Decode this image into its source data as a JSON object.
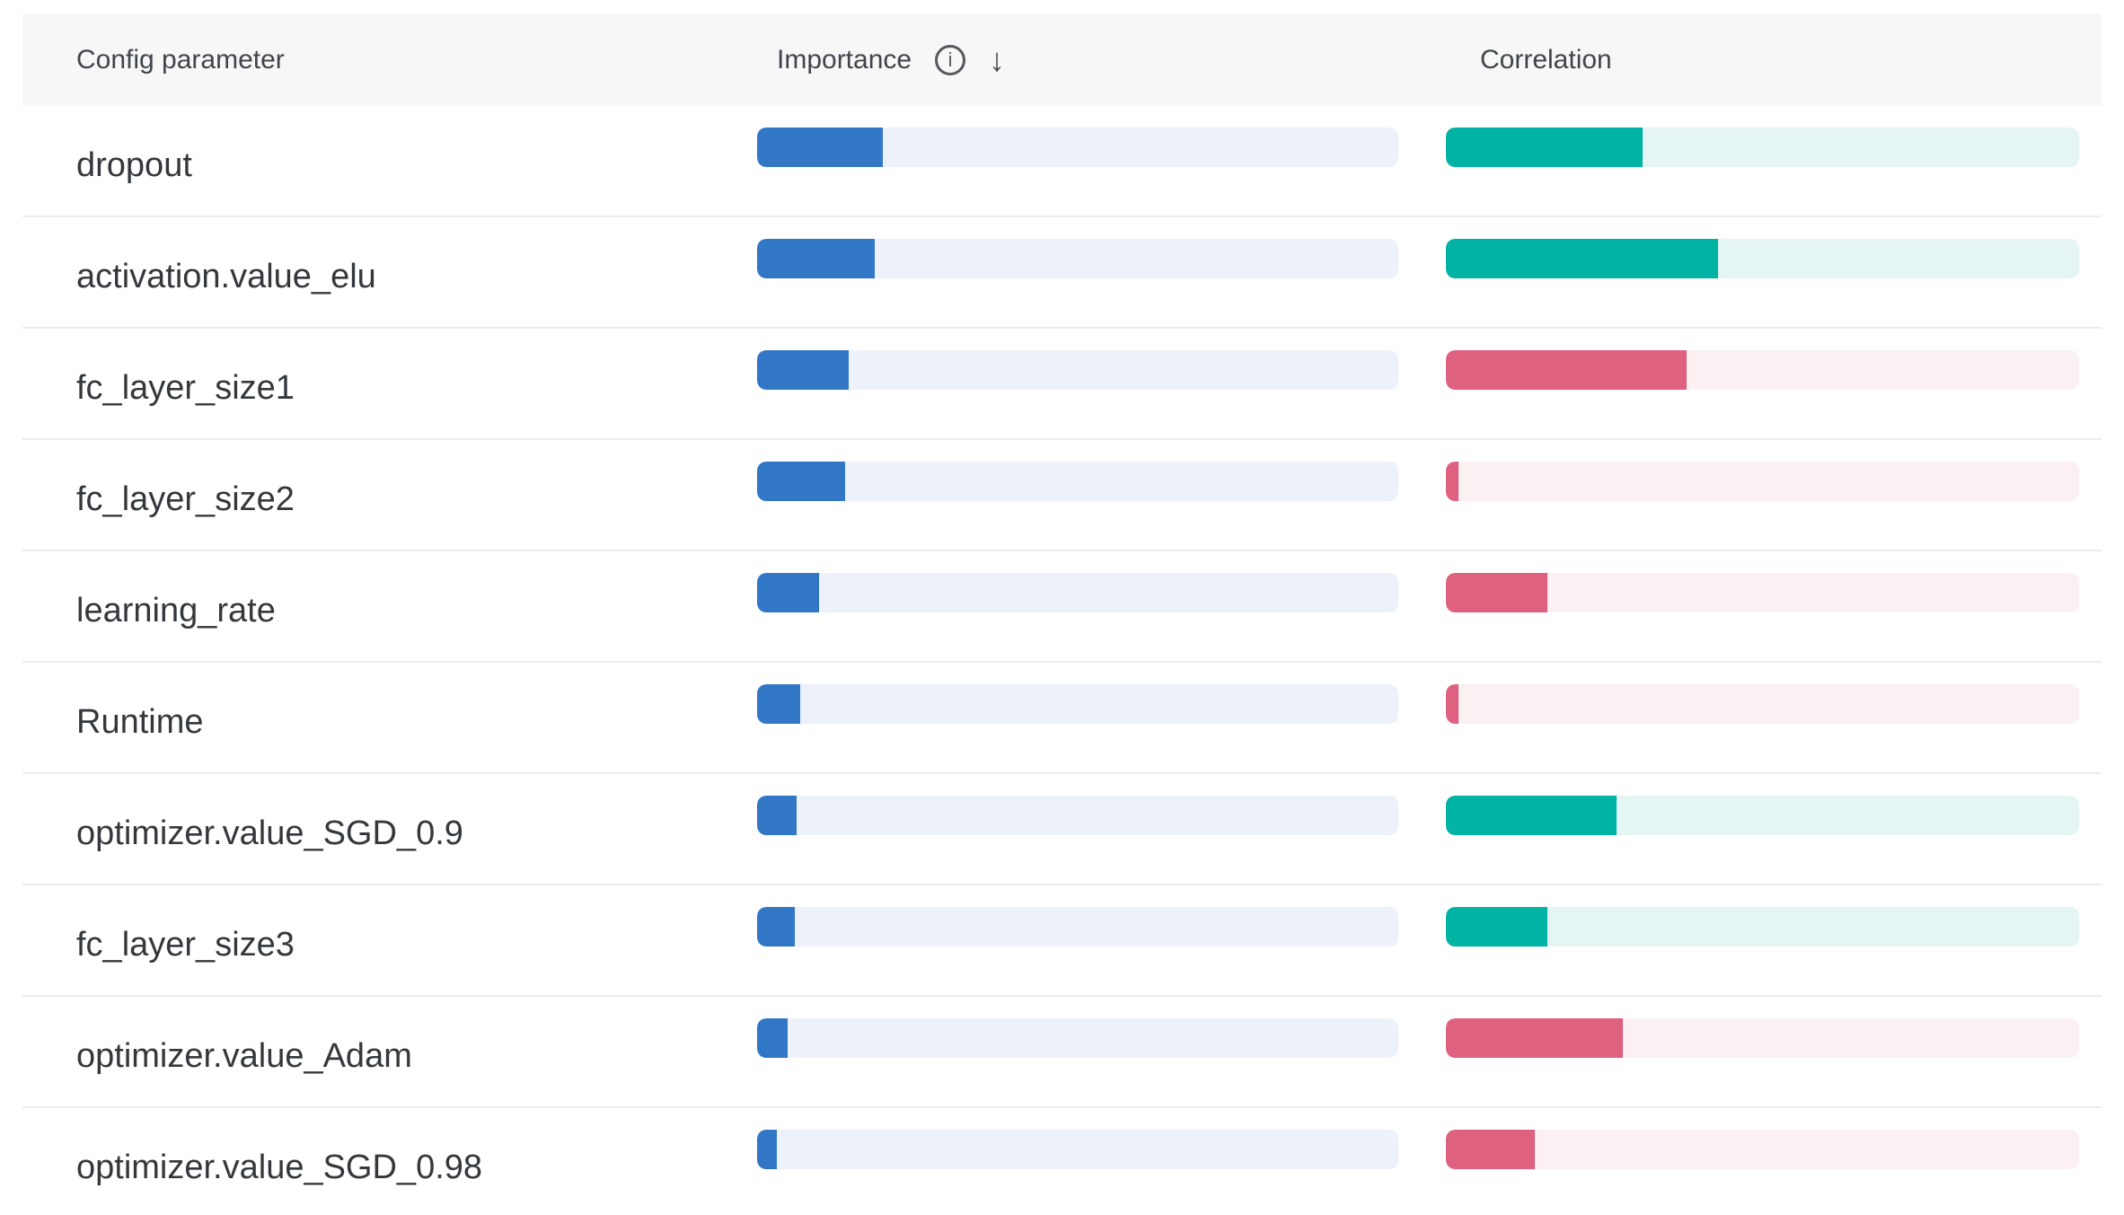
{
  "panel": {
    "columns": {
      "parameter": "Config parameter",
      "importance": "Importance",
      "correlation": "Correlation"
    },
    "header_icons": {
      "info_glyph": "i",
      "sort_descending_glyph": "↓"
    },
    "colors": {
      "importance_fill": "#3277c6",
      "importance_track": "#edf1fa",
      "correlation_positive_fill": "#00b3a2",
      "correlation_positive_track": "#e4f5f3",
      "correlation_negative_fill": "#de6180",
      "correlation_negative_track": "#fbf0f2",
      "header_background": "#f7f7f8",
      "row_divider": "#ececed",
      "text": "#34383c"
    },
    "rows": [
      {
        "parameter": "dropout",
        "importance": 0.196,
        "correlation": 0.31
      },
      {
        "parameter": "activation.value_elu",
        "importance": 0.183,
        "correlation": 0.43
      },
      {
        "parameter": "fc_layer_size1",
        "importance": 0.143,
        "correlation": -0.38
      },
      {
        "parameter": "fc_layer_size2",
        "importance": 0.137,
        "correlation": -0.02
      },
      {
        "parameter": "learning_rate",
        "importance": 0.097,
        "correlation": -0.16
      },
      {
        "parameter": "Runtime",
        "importance": 0.067,
        "correlation": -0.02
      },
      {
        "parameter": "optimizer.value_SGD_0.9",
        "importance": 0.062,
        "correlation": 0.27
      },
      {
        "parameter": "fc_layer_size3",
        "importance": 0.059,
        "correlation": 0.16
      },
      {
        "parameter": "optimizer.value_Adam",
        "importance": 0.048,
        "correlation": -0.28
      },
      {
        "parameter": "optimizer.value_SGD_0.98",
        "importance": 0.031,
        "correlation": -0.14
      }
    ]
  },
  "chart_data": {
    "type": "bar",
    "orientation": "horizontal",
    "categories": [
      "dropout",
      "activation.value_elu",
      "fc_layer_size1",
      "fc_layer_size2",
      "learning_rate",
      "Runtime",
      "optimizer.value_SGD_0.9",
      "fc_layer_size3",
      "optimizer.value_Adam",
      "optimizer.value_SGD_0.98"
    ],
    "series": [
      {
        "name": "Importance",
        "values": [
          0.196,
          0.183,
          0.143,
          0.137,
          0.097,
          0.067,
          0.062,
          0.059,
          0.048,
          0.031
        ],
        "value_range": [
          0,
          1
        ]
      },
      {
        "name": "Correlation",
        "values": [
          0.31,
          0.43,
          -0.38,
          -0.02,
          -0.16,
          -0.02,
          0.27,
          0.16,
          -0.28,
          -0.14
        ],
        "value_range": [
          -1,
          1
        ]
      }
    ],
    "title": "",
    "xlabel": "",
    "ylabel": "Config parameter",
    "sort": "Importance descending",
    "legend_position": "none",
    "grid": false
  }
}
